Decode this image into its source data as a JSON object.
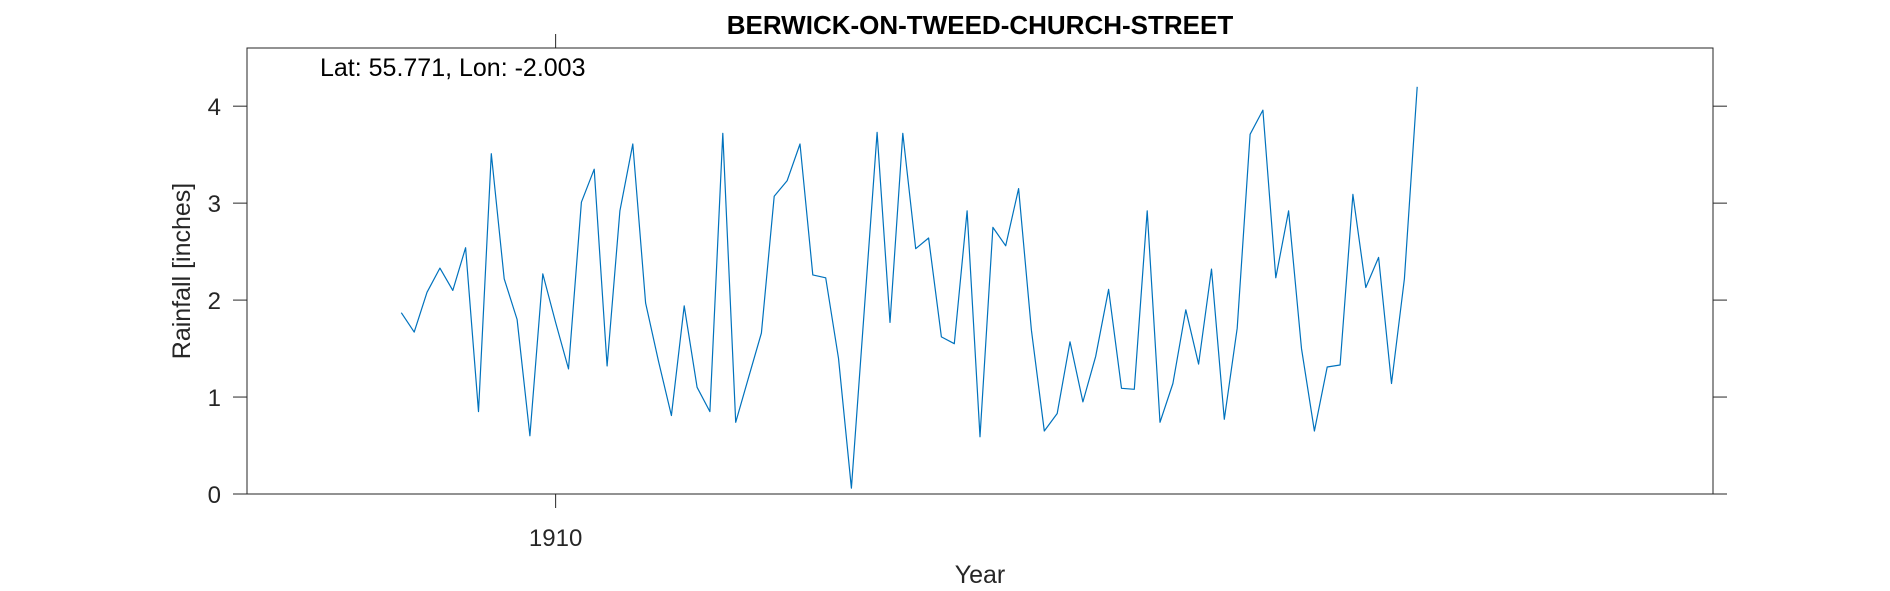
{
  "chart_data": {
    "type": "line",
    "title": "BERWICK-ON-TWEED-CHURCH-STREET",
    "annotation": "Lat: 55.771, Lon: -2.003",
    "xlabel": "Year",
    "ylabel": "Rainfall [inches]",
    "xlim": [
      1908.0,
      1917.5
    ],
    "ylim": [
      0,
      4.6
    ],
    "xticks": [
      1910
    ],
    "yticks": [
      0,
      1,
      2,
      3,
      4
    ],
    "grid": false,
    "series": [
      {
        "color": "#0072BD",
        "x_start": 1909.0,
        "x_step": 0.0833333,
        "values": [
          1.87,
          1.67,
          2.08,
          2.33,
          2.1,
          2.54,
          0.85,
          3.51,
          2.22,
          1.8,
          0.6,
          2.27,
          1.77,
          1.29,
          3.01,
          3.35,
          1.32,
          2.92,
          3.61,
          1.97,
          1.37,
          0.81,
          1.94,
          1.1,
          0.85,
          3.72,
          0.74,
          1.2,
          1.66,
          3.07,
          3.23,
          3.61,
          2.26,
          2.23,
          1.4,
          0.06,
          1.9,
          3.73,
          1.77,
          3.72,
          2.53,
          2.64,
          1.62,
          1.55,
          2.92,
          0.59,
          2.75,
          2.56,
          3.15,
          1.69,
          0.65,
          0.83,
          1.57,
          0.95,
          1.42,
          2.11,
          1.09,
          1.08,
          2.92,
          0.74,
          1.14,
          1.9,
          1.34,
          2.32,
          0.77,
          1.71,
          3.71,
          3.96,
          2.23,
          2.92,
          1.5,
          0.65,
          1.31,
          1.33,
          3.09,
          2.13,
          2.44,
          1.14,
          2.22,
          4.2
        ]
      }
    ]
  }
}
